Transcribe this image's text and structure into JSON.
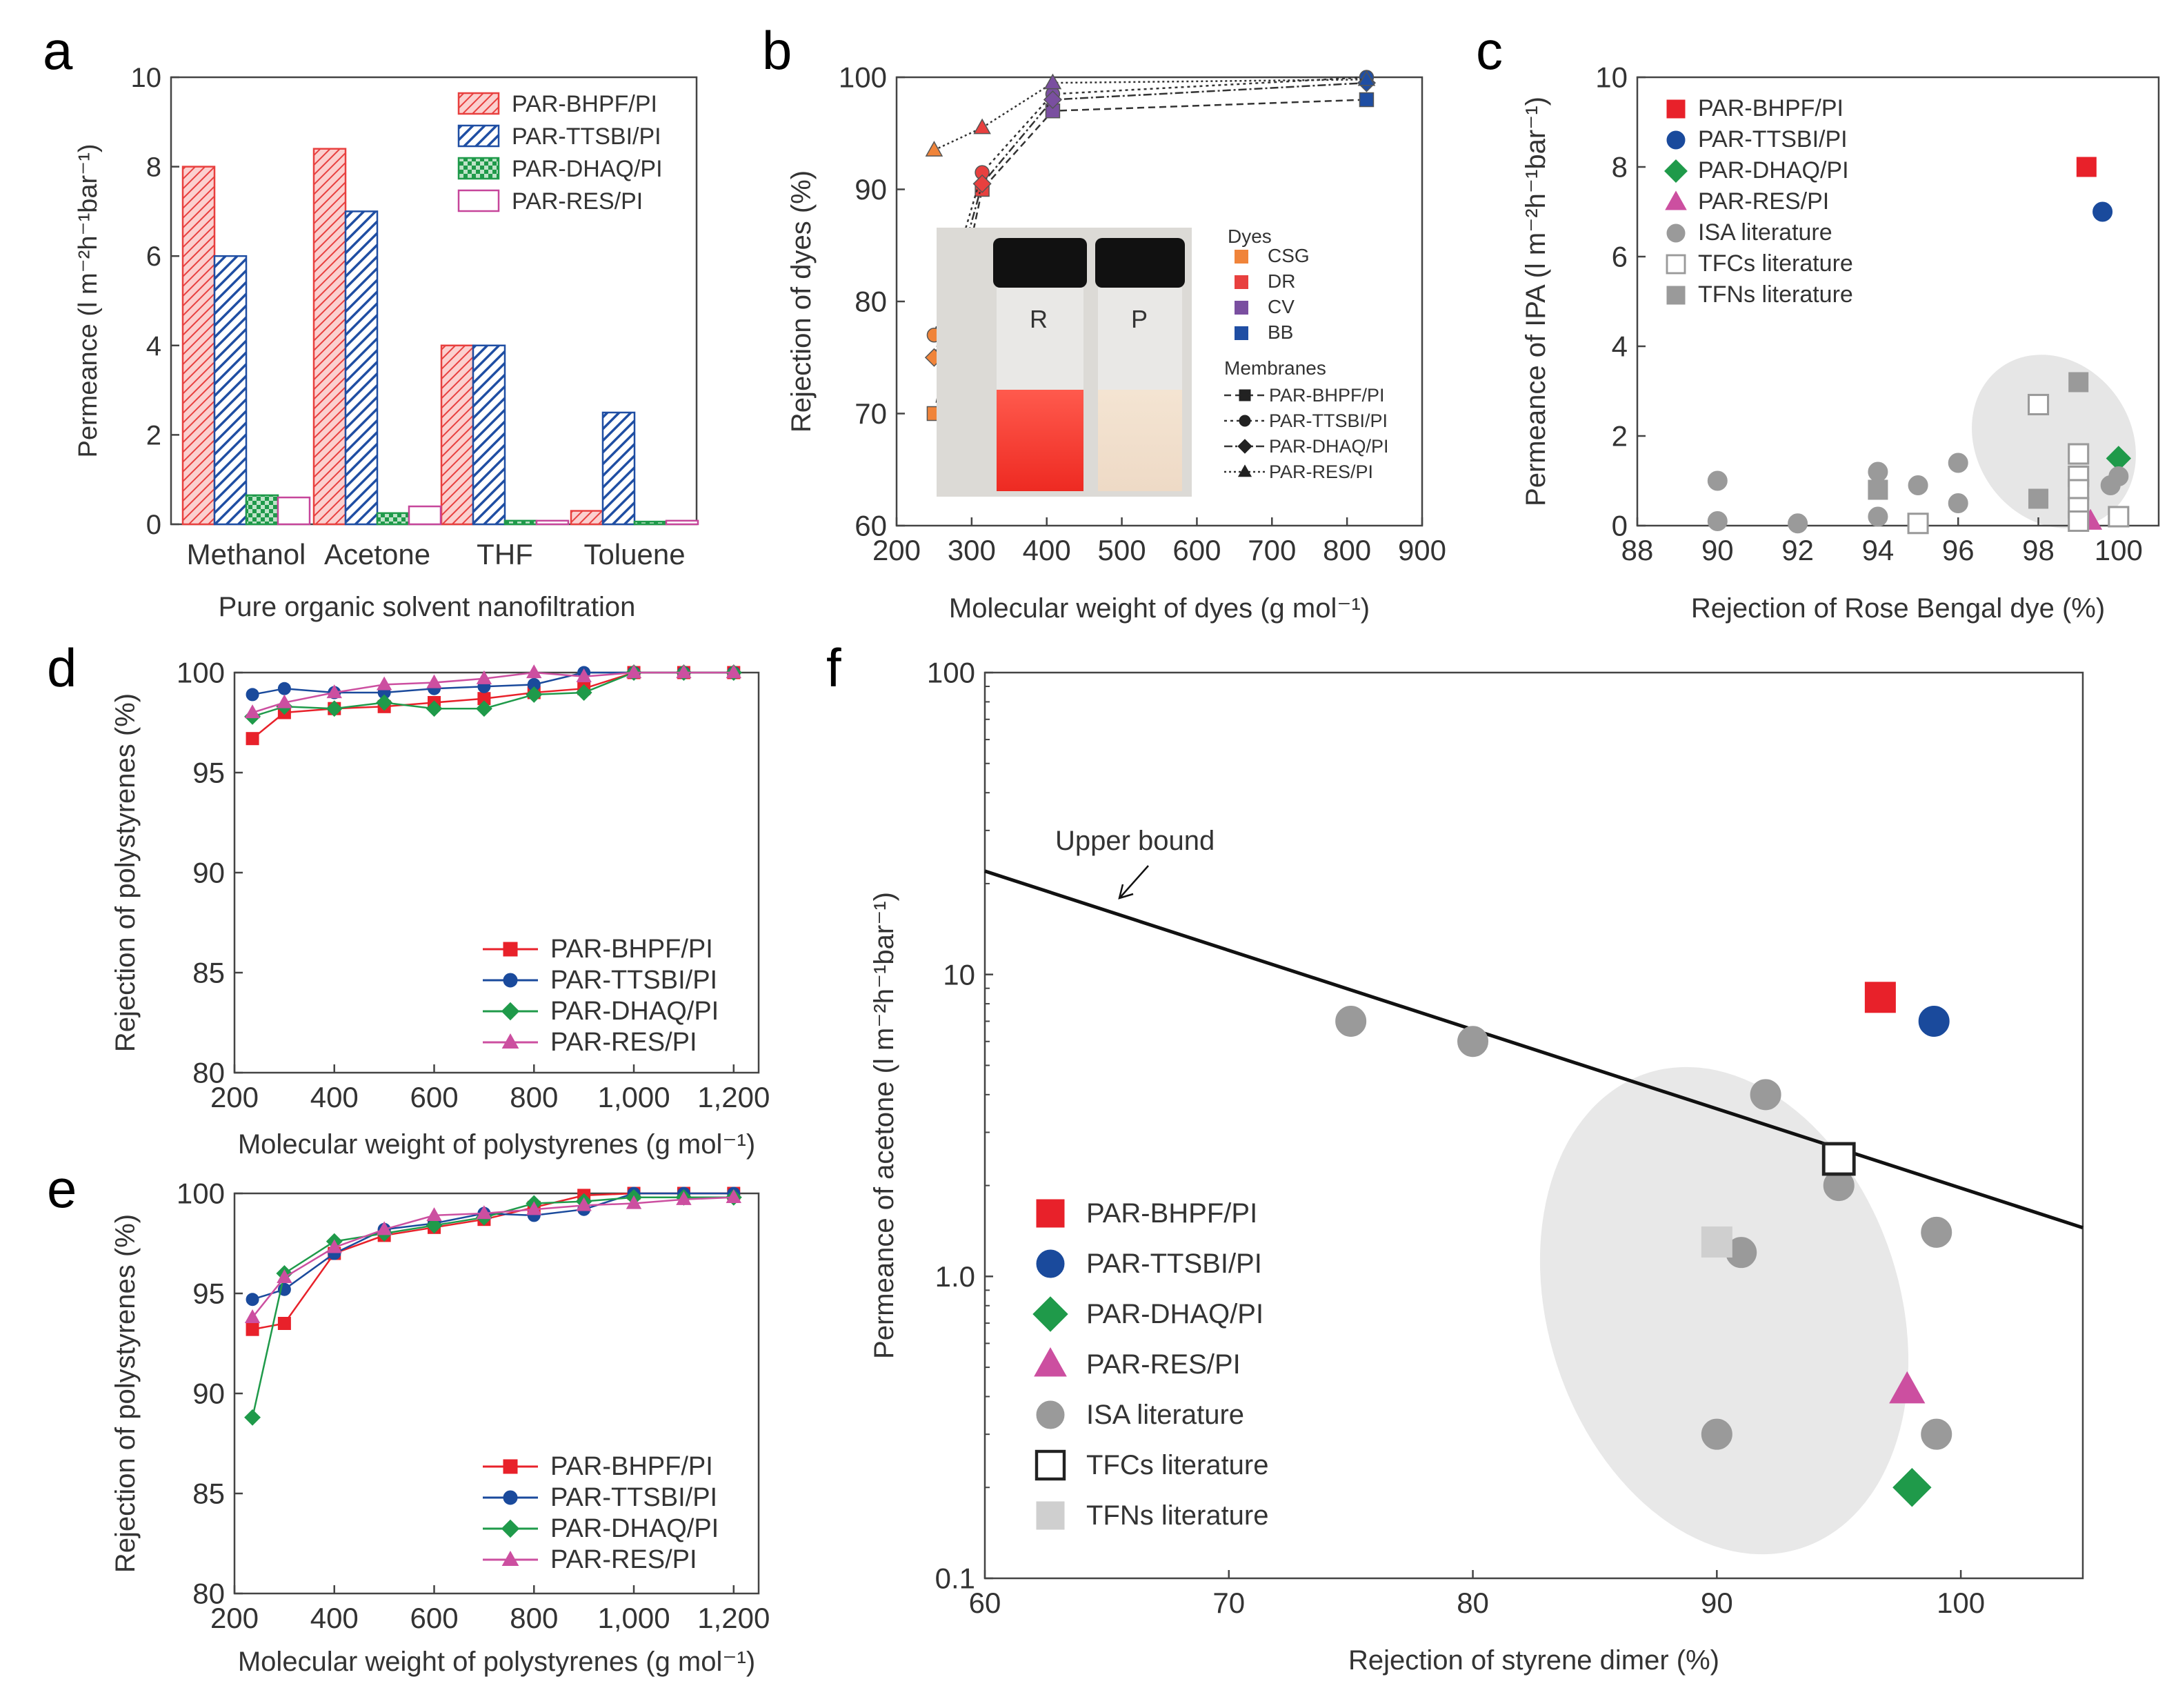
{
  "panel_letters": [
    "a",
    "b",
    "c",
    "d",
    "e",
    "f"
  ],
  "photo": {
    "left_label": "R",
    "right_label": "P"
  },
  "chart_data": [
    {
      "panel": "a",
      "type": "bar",
      "xlabel": "Pure organic solvent nanofiltration",
      "ylabel": "Permeance (l m⁻²h⁻¹bar⁻¹)",
      "ylim": [
        0,
        10
      ],
      "yticks": [
        "0",
        "2",
        "4",
        "6",
        "8",
        "10"
      ],
      "categories": [
        "Methanol",
        "Acetone",
        "THF",
        "Toluene"
      ],
      "series": [
        {
          "name": "PAR-BHPF/PI",
          "color": "#e8403f",
          "pattern": "hatch-red",
          "values": [
            8.0,
            8.4,
            4.0,
            0.3
          ]
        },
        {
          "name": "PAR-TTSBI/PI",
          "color": "#1f4ea3",
          "pattern": "hatch-blue",
          "values": [
            6.0,
            7.0,
            4.0,
            2.5
          ]
        },
        {
          "name": "PAR-DHAQ/PI",
          "color": "#1f9a4a",
          "pattern": "check-green",
          "values": [
            0.65,
            0.25,
            0.08,
            0.06
          ]
        },
        {
          "name": "PAR-RES/PI",
          "color": "#c6459a",
          "pattern": "open",
          "values": [
            0.6,
            0.4,
            0.08,
            0.08
          ]
        }
      ]
    },
    {
      "panel": "b",
      "type": "scatter",
      "xlabel": "Molecular weight of dyes (g mol⁻¹)",
      "ylabel": "Rejection of dyes (%)",
      "xlim": [
        200,
        900
      ],
      "ylim": [
        60,
        100
      ],
      "xticks": [
        "200",
        "300",
        "400",
        "500",
        "600",
        "700",
        "800",
        "900"
      ],
      "yticks": [
        "60",
        "70",
        "80",
        "90",
        "100"
      ],
      "dyes_title": "Dyes",
      "dyes": [
        {
          "name": "CSG",
          "color": "#f0843a",
          "mw": 250
        },
        {
          "name": "DR",
          "color": "#e8403f",
          "mw": 314
        },
        {
          "name": "CV",
          "color": "#7a4fa0",
          "mw": 408
        },
        {
          "name": "BB",
          "color": "#1f4ea3",
          "mw": 826
        }
      ],
      "membranes_title": "Membranes",
      "membranes": [
        {
          "name": "PAR-BHPF/PI",
          "marker": "square",
          "rejection": [
            70,
            90,
            97,
            98
          ]
        },
        {
          "name": "PAR-TTSBI/PI",
          "marker": "circle",
          "rejection": [
            77,
            91.5,
            98.5,
            100
          ]
        },
        {
          "name": "PAR-DHAQ/PI",
          "marker": "diamond",
          "rejection": [
            75,
            90.5,
            98,
            99.5
          ]
        },
        {
          "name": "PAR-RES/PI",
          "marker": "triangle",
          "rejection": [
            93.5,
            95.5,
            99.5,
            99.8
          ]
        }
      ]
    },
    {
      "panel": "c",
      "type": "scatter",
      "xlabel": "Rejection of Rose Bengal dye (%)",
      "ylabel": "Permeance of IPA (l m⁻²h⁻¹bar⁻¹)",
      "xlim": [
        88,
        101
      ],
      "ylim": [
        0,
        10
      ],
      "xticks": [
        "88",
        "90",
        "92",
        "94",
        "96",
        "98",
        "100"
      ],
      "yticks": [
        "0",
        "2",
        "4",
        "6",
        "8",
        "10"
      ],
      "series": [
        {
          "name": "PAR-BHPF/PI",
          "marker": "square",
          "color": "#e8212a",
          "points": [
            [
              99.2,
              8.0
            ]
          ]
        },
        {
          "name": "PAR-TTSBI/PI",
          "marker": "circle",
          "color": "#1a4a9c",
          "points": [
            [
              99.6,
              7.0
            ]
          ]
        },
        {
          "name": "PAR-DHAQ/PI",
          "marker": "diamond",
          "color": "#1f9a4a",
          "points": [
            [
              100.0,
              1.5
            ]
          ]
        },
        {
          "name": "PAR-RES/PI",
          "marker": "triangle",
          "color": "#cc4fa0",
          "points": [
            [
              99.3,
              0.1
            ]
          ]
        },
        {
          "name": "ISA literature",
          "marker": "circle",
          "color": "#9a9a9a",
          "points": [
            [
              90,
              1.0
            ],
            [
              90,
              0.1
            ],
            [
              92,
              0.05
            ],
            [
              94,
              1.2
            ],
            [
              94,
              0.2
            ],
            [
              95,
              0.9
            ],
            [
              96,
              1.4
            ],
            [
              96,
              0.5
            ],
            [
              99.8,
              0.9
            ],
            [
              100,
              1.1
            ]
          ]
        },
        {
          "name": "TFCs literature",
          "marker": "open-square",
          "color": "#9a9a9a",
          "points": [
            [
              95,
              0.05
            ],
            [
              98,
              2.7
            ],
            [
              99,
              1.6
            ],
            [
              99,
              1.1
            ],
            [
              99,
              0.8
            ],
            [
              99,
              0.4
            ],
            [
              99,
              0.1
            ],
            [
              100,
              0.2
            ]
          ]
        },
        {
          "name": "TFNs literature",
          "marker": "square",
          "color": "#9a9a9a",
          "points": [
            [
              94,
              0.8
            ],
            [
              98,
              0.6
            ],
            [
              99,
              3.2
            ]
          ]
        }
      ]
    },
    {
      "panel": "d",
      "type": "line",
      "xlabel": "Molecular weight of polystyrenes (g mol⁻¹)",
      "ylabel": "Rejection of polystyrenes (%)",
      "xlim": [
        200,
        1250
      ],
      "ylim": [
        80,
        100
      ],
      "xticks": [
        "200",
        "400",
        "600",
        "800",
        "1,000",
        "1,200"
      ],
      "yticks": [
        "80",
        "85",
        "90",
        "95",
        "100"
      ],
      "x": [
        236,
        300,
        400,
        500,
        600,
        700,
        800,
        900,
        1000,
        1100,
        1200
      ],
      "series": [
        {
          "name": "PAR-BHPF/PI",
          "marker": "square",
          "color": "#e8212a",
          "values": [
            96.7,
            98.0,
            98.2,
            98.3,
            98.5,
            98.7,
            99.0,
            99.2,
            100,
            100,
            100
          ]
        },
        {
          "name": "PAR-TTSBI/PI",
          "marker": "circle",
          "color": "#1a4a9c",
          "values": [
            98.9,
            99.2,
            99.0,
            99.0,
            99.2,
            99.3,
            99.4,
            100,
            100,
            100,
            100
          ]
        },
        {
          "name": "PAR-DHAQ/PI",
          "marker": "diamond",
          "color": "#1f9a4a",
          "values": [
            97.8,
            98.3,
            98.2,
            98.5,
            98.2,
            98.2,
            98.9,
            99.0,
            100,
            100,
            100
          ]
        },
        {
          "name": "PAR-RES/PI",
          "marker": "triangle",
          "color": "#cc4fa0",
          "values": [
            98.0,
            98.5,
            99.0,
            99.4,
            99.5,
            99.7,
            100,
            99.8,
            100,
            100,
            100
          ]
        }
      ]
    },
    {
      "panel": "e",
      "type": "line",
      "xlabel": "Molecular weight of polystyrenes (g mol⁻¹)",
      "ylabel": "Rejection of polystyrenes (%)",
      "xlim": [
        200,
        1250
      ],
      "ylim": [
        80,
        100
      ],
      "xticks": [
        "200",
        "400",
        "600",
        "800",
        "1,000",
        "1,200"
      ],
      "yticks": [
        "80",
        "85",
        "90",
        "95",
        "100"
      ],
      "x": [
        236,
        300,
        400,
        500,
        600,
        700,
        800,
        900,
        1000,
        1100,
        1200
      ],
      "series": [
        {
          "name": "PAR-BHPF/PI",
          "marker": "square",
          "color": "#e8212a",
          "values": [
            93.2,
            93.5,
            97.0,
            97.9,
            98.3,
            98.7,
            99.3,
            99.9,
            100,
            100,
            100
          ]
        },
        {
          "name": "PAR-TTSBI/PI",
          "marker": "circle",
          "color": "#1a4a9c",
          "values": [
            94.7,
            95.2,
            97.0,
            98.2,
            98.5,
            99.0,
            98.9,
            99.2,
            100,
            100,
            100
          ]
        },
        {
          "name": "PAR-DHAQ/PI",
          "marker": "diamond",
          "color": "#1f9a4a",
          "values": [
            88.8,
            96.0,
            97.6,
            98.0,
            98.4,
            98.8,
            99.5,
            99.6,
            99.8,
            99.8,
            99.8
          ]
        },
        {
          "name": "PAR-RES/PI",
          "marker": "triangle",
          "color": "#cc4fa0",
          "values": [
            93.8,
            95.8,
            97.3,
            98.2,
            98.9,
            99.0,
            99.2,
            99.4,
            99.5,
            99.7,
            99.8
          ]
        }
      ]
    },
    {
      "panel": "f",
      "type": "scatter",
      "xlabel": "Rejection of styrene dimer (%)",
      "ylabel": "Permeance of acetone (l m⁻²h⁻¹bar⁻¹)",
      "xlim": [
        60,
        105
      ],
      "ylim": [
        0.1,
        100
      ],
      "yscale": "log",
      "xticks": [
        "60",
        "70",
        "80",
        "90",
        "100"
      ],
      "yticks": [
        "0.1",
        "1.0",
        "10",
        "100"
      ],
      "upper_bound": {
        "label": "Upper bound",
        "points": [
          [
            60,
            22
          ],
          [
            105,
            1.45
          ]
        ]
      },
      "series": [
        {
          "name": "PAR-BHPF/PI",
          "marker": "square",
          "color": "#e8212a",
          "points": [
            [
              96.7,
              8.4
            ]
          ]
        },
        {
          "name": "PAR-TTSBI/PI",
          "marker": "circle",
          "color": "#1a4a9c",
          "points": [
            [
              98.9,
              7.0
            ]
          ]
        },
        {
          "name": "PAR-DHAQ/PI",
          "marker": "diamond",
          "color": "#1f9a4a",
          "points": [
            [
              98.0,
              0.2
            ]
          ]
        },
        {
          "name": "PAR-RES/PI",
          "marker": "triangle",
          "color": "#cc4fa0",
          "points": [
            [
              97.8,
              0.42
            ]
          ]
        },
        {
          "name": "ISA literature",
          "marker": "circle",
          "color": "#9a9a9a",
          "points": [
            [
              75,
              7.0
            ],
            [
              80,
              6.0
            ],
            [
              92,
              4.0
            ],
            [
              95,
              2.0
            ],
            [
              91,
              1.2
            ],
            [
              99,
              1.4
            ],
            [
              90,
              0.3
            ],
            [
              99,
              0.3
            ]
          ]
        },
        {
          "name": "TFCs literature",
          "marker": "open-square",
          "color": "#222222",
          "points": [
            [
              95,
              2.45
            ]
          ]
        },
        {
          "name": "TFNs literature",
          "marker": "square",
          "color": "#cfcfcf",
          "points": [
            [
              90,
              1.3
            ]
          ]
        }
      ]
    }
  ]
}
